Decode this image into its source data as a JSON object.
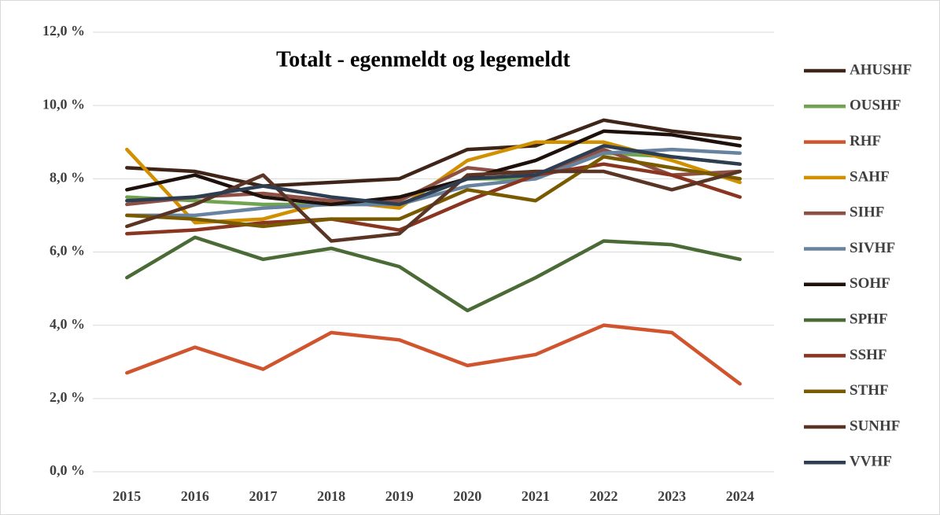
{
  "chart_data": {
    "type": "line",
    "title": "Totalt - egenmeldt og legemeldt",
    "categories": [
      "2015",
      "2016",
      "2017",
      "2018",
      "2019",
      "2020",
      "2021",
      "2022",
      "2023",
      "2024"
    ],
    "ylim": [
      0,
      12
    ],
    "yticks": [
      {
        "value": 0,
        "label": "0,0 %"
      },
      {
        "value": 2,
        "label": "2,0 %"
      },
      {
        "value": 4,
        "label": "4,0 %"
      },
      {
        "value": 6,
        "label": "6,0 %"
      },
      {
        "value": 8,
        "label": "8,0 %"
      },
      {
        "value": 10,
        "label": "10,0 %"
      },
      {
        "value": 12,
        "label": "12,0 %"
      }
    ],
    "grid": true,
    "legend": "right",
    "series": [
      {
        "name": "AHUSHF",
        "color": "#3f2418",
        "values": [
          8.3,
          8.2,
          7.8,
          7.9,
          8.0,
          8.8,
          8.9,
          9.6,
          9.3,
          9.1
        ]
      },
      {
        "name": "OUSHF",
        "color": "#70a450",
        "values": [
          7.5,
          7.4,
          7.3,
          7.3,
          7.3,
          8.0,
          8.0,
          8.7,
          8.6,
          8.4
        ]
      },
      {
        "name": "RHF",
        "color": "#d0552f",
        "values": [
          2.7,
          3.4,
          2.8,
          3.8,
          3.6,
          2.9,
          3.2,
          4.0,
          3.8,
          2.4
        ]
      },
      {
        "name": "SAHF",
        "color": "#d09000",
        "values": [
          8.8,
          6.8,
          6.9,
          7.4,
          7.2,
          8.5,
          9.0,
          9.0,
          8.5,
          7.9
        ]
      },
      {
        "name": "SIHF",
        "color": "#8e5044",
        "values": [
          7.3,
          7.5,
          7.6,
          7.4,
          7.4,
          8.3,
          8.1,
          8.8,
          8.1,
          8.2
        ]
      },
      {
        "name": "SIVHF",
        "color": "#6883a0",
        "values": [
          7.0,
          7.0,
          7.2,
          7.3,
          7.3,
          7.8,
          8.0,
          8.7,
          8.8,
          8.7
        ]
      },
      {
        "name": "SOHF",
        "color": "#1e100a",
        "values": [
          7.7,
          8.1,
          7.5,
          7.3,
          7.5,
          8.0,
          8.5,
          9.3,
          9.2,
          8.9
        ]
      },
      {
        "name": "SPHF",
        "color": "#4a6b35",
        "values": [
          5.3,
          6.4,
          5.8,
          6.1,
          5.6,
          4.4,
          5.3,
          6.3,
          6.2,
          5.8
        ]
      },
      {
        "name": "SSHF",
        "color": "#8a3520",
        "values": [
          6.5,
          6.6,
          6.8,
          6.9,
          6.6,
          7.4,
          8.1,
          8.4,
          8.1,
          7.5
        ]
      },
      {
        "name": "STHF",
        "color": "#7a5a00",
        "values": [
          7.0,
          6.9,
          6.7,
          6.9,
          6.9,
          7.7,
          7.4,
          8.6,
          8.3,
          8.0
        ]
      },
      {
        "name": "SUNHF",
        "color": "#5a3424",
        "values": [
          6.7,
          7.3,
          8.1,
          6.3,
          6.5,
          8.1,
          8.2,
          8.2,
          7.7,
          8.2
        ]
      },
      {
        "name": "VVHF",
        "color": "#2e3e52",
        "values": [
          7.4,
          7.5,
          7.8,
          7.5,
          7.3,
          8.0,
          8.1,
          8.9,
          8.6,
          8.4
        ]
      }
    ]
  }
}
